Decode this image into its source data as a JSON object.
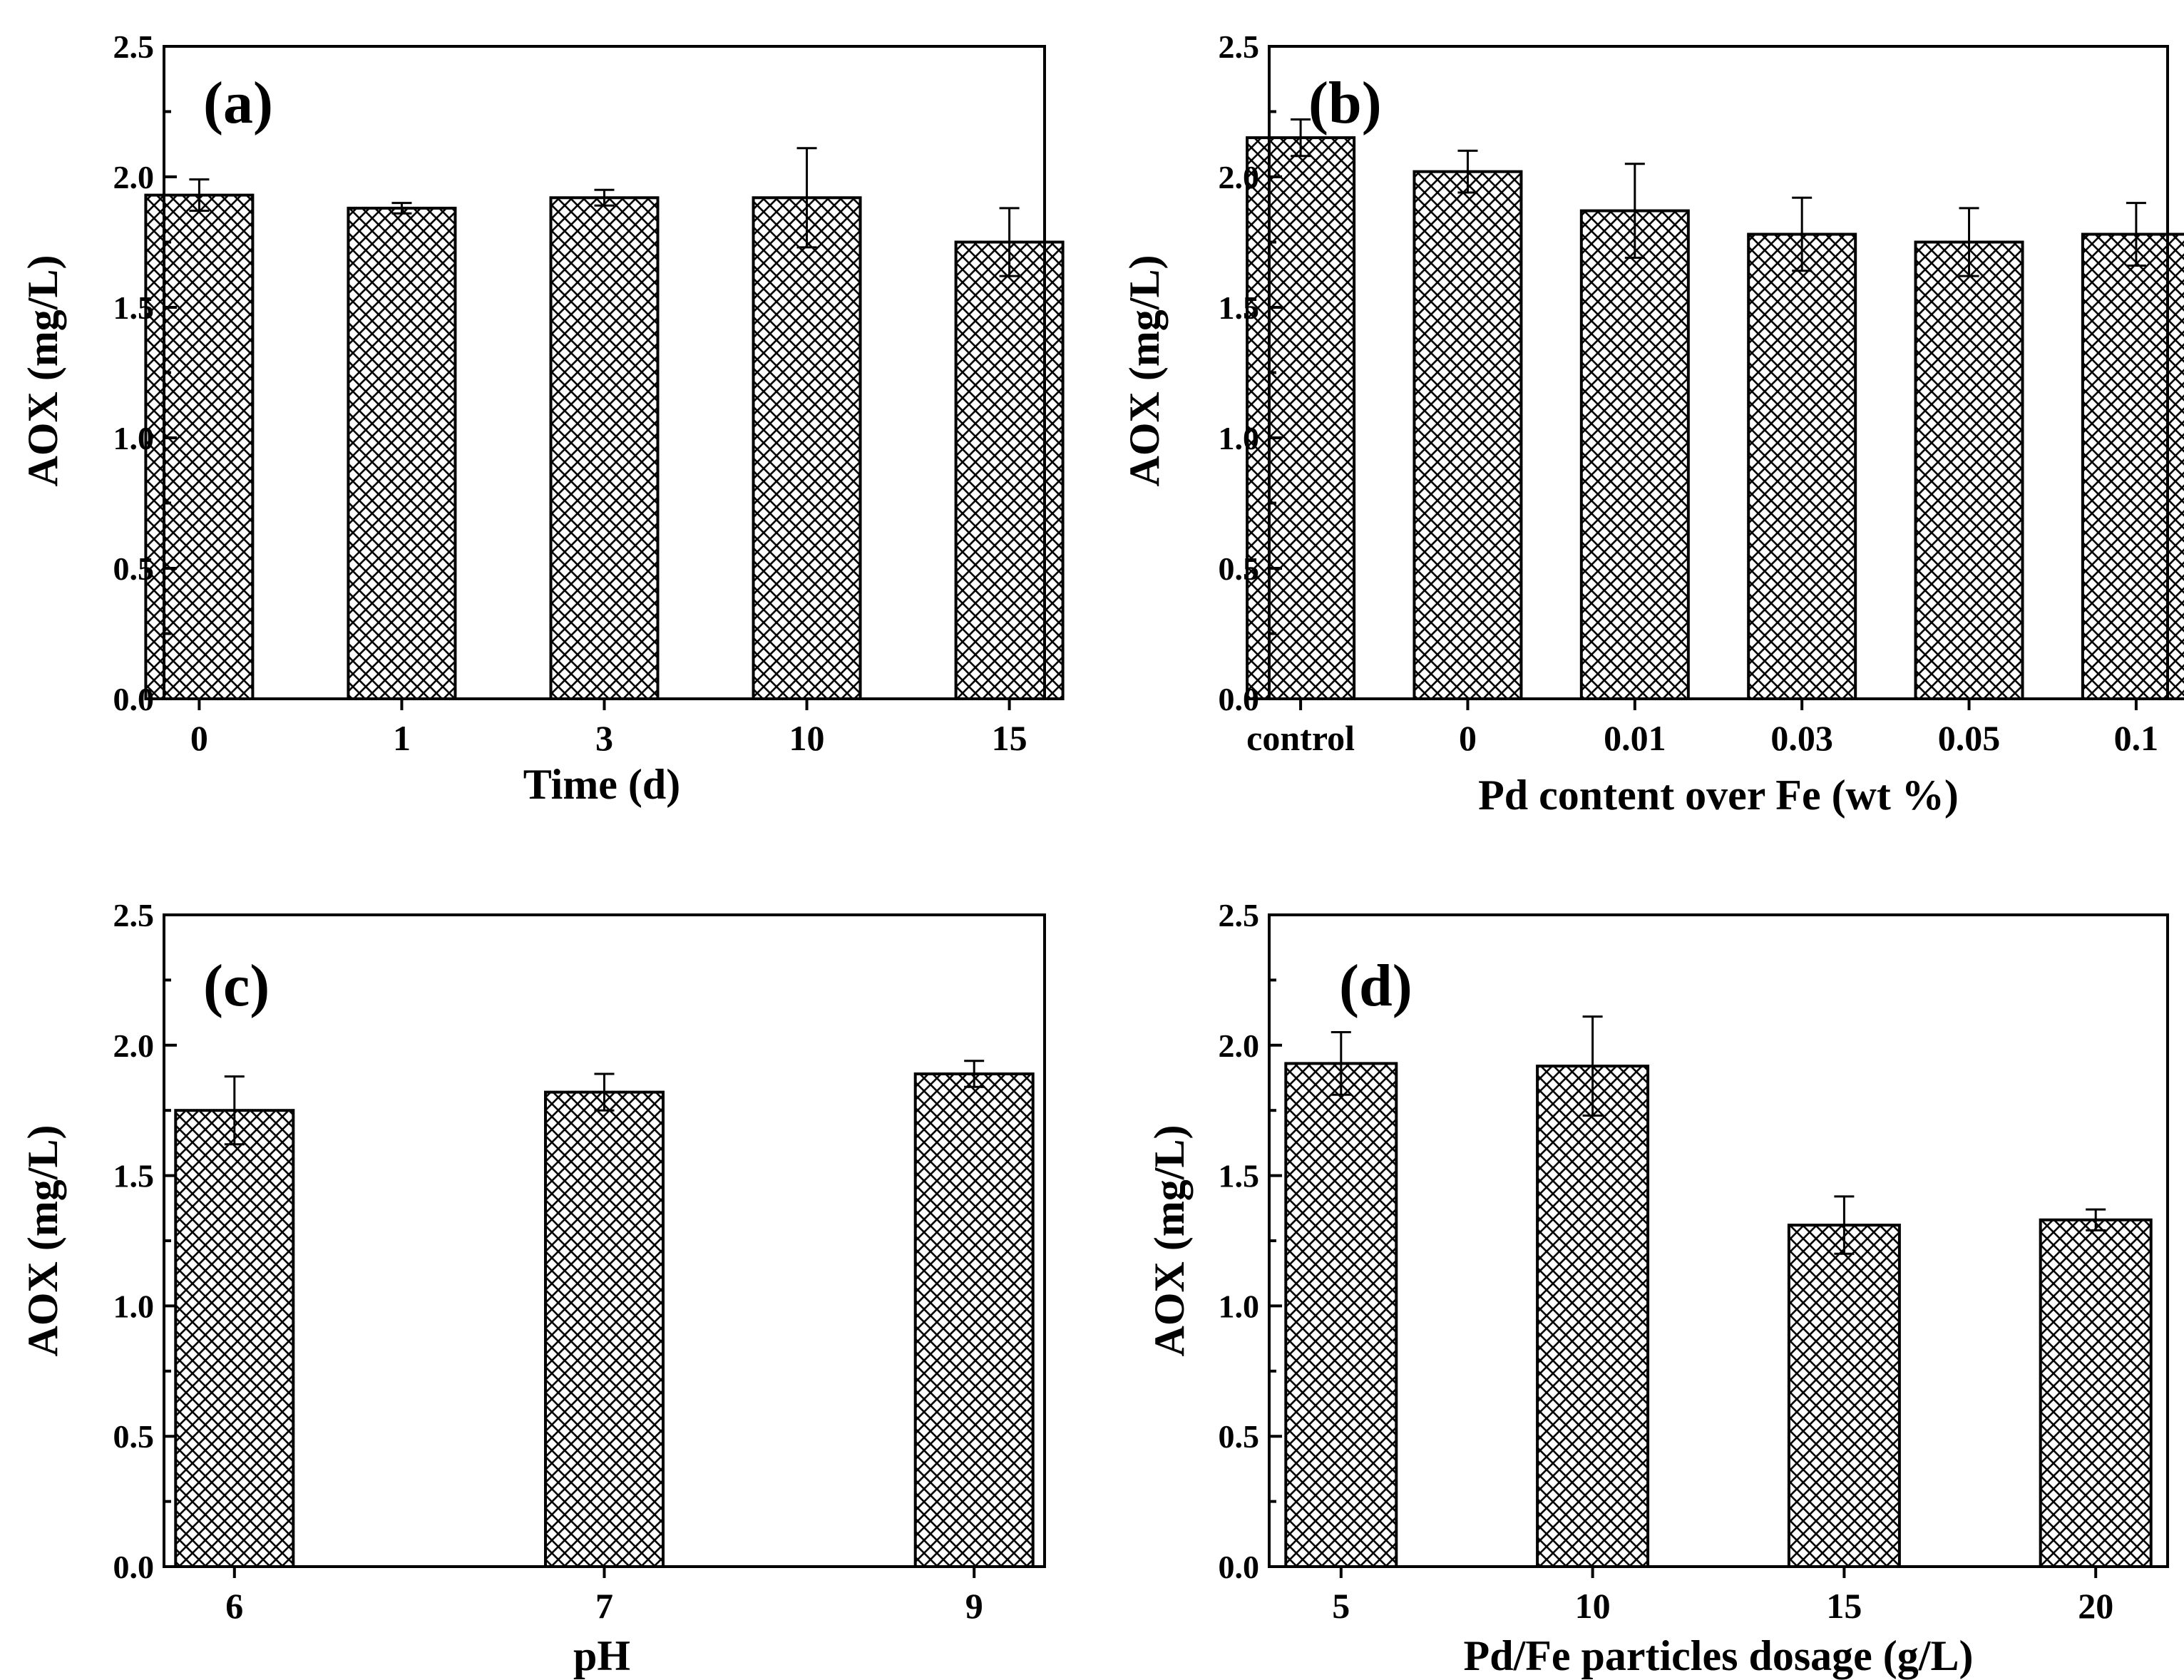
{
  "chart_data": [
    {
      "id": "a",
      "type": "bar",
      "panel_label": "(a)",
      "xlabel": "Time (d)",
      "ylabel": "AOX (mg/L)",
      "ylim": [
        0,
        2.5
      ],
      "yticks": [
        "0.0",
        "0.5",
        "1.0",
        "1.5",
        "2.0",
        "2.5"
      ],
      "categories": [
        "0",
        "1",
        "3",
        "10",
        "15"
      ],
      "values": [
        1.93,
        1.88,
        1.92,
        1.92,
        1.75
      ],
      "errors": [
        0.06,
        0.02,
        0.03,
        0.19,
        0.13
      ]
    },
    {
      "id": "b",
      "type": "bar",
      "panel_label": "(b)",
      "xlabel": "Pd content over Fe (wt %)",
      "ylabel": "AOX (mg/L)",
      "ylim": [
        0,
        2.5
      ],
      "yticks": [
        "0.0",
        "0.5",
        "1.0",
        "1.5",
        "2.0",
        "2.5"
      ],
      "categories": [
        "control",
        "0",
        "0.01",
        "0.03",
        "0.05",
        "0.1"
      ],
      "values": [
        2.15,
        2.02,
        1.87,
        1.78,
        1.75,
        1.78
      ],
      "errors": [
        0.07,
        0.08,
        0.18,
        0.14,
        0.13,
        0.12
      ]
    },
    {
      "id": "c",
      "type": "bar",
      "panel_label": "(c)",
      "xlabel": "pH",
      "ylabel": "AOX (mg/L)",
      "ylim": [
        0,
        2.5
      ],
      "yticks": [
        "0.0",
        "0.5",
        "1.0",
        "1.5",
        "2.0",
        "2.5"
      ],
      "categories": [
        "6",
        "7",
        "9"
      ],
      "values": [
        1.75,
        1.82,
        1.89
      ],
      "errors": [
        0.13,
        0.07,
        0.05
      ]
    },
    {
      "id": "d",
      "type": "bar",
      "panel_label": "(d)",
      "xlabel": "Pd/Fe particles dosage (g/L)",
      "ylabel": "AOX (mg/L)",
      "ylim": [
        0,
        2.5
      ],
      "yticks": [
        "0.0",
        "0.5",
        "1.0",
        "1.5",
        "2.0",
        "2.5"
      ],
      "categories": [
        "5",
        "10",
        "15",
        "20"
      ],
      "values": [
        1.93,
        1.92,
        1.31,
        1.33
      ],
      "errors": [
        0.12,
        0.19,
        0.11,
        0.04
      ]
    }
  ]
}
